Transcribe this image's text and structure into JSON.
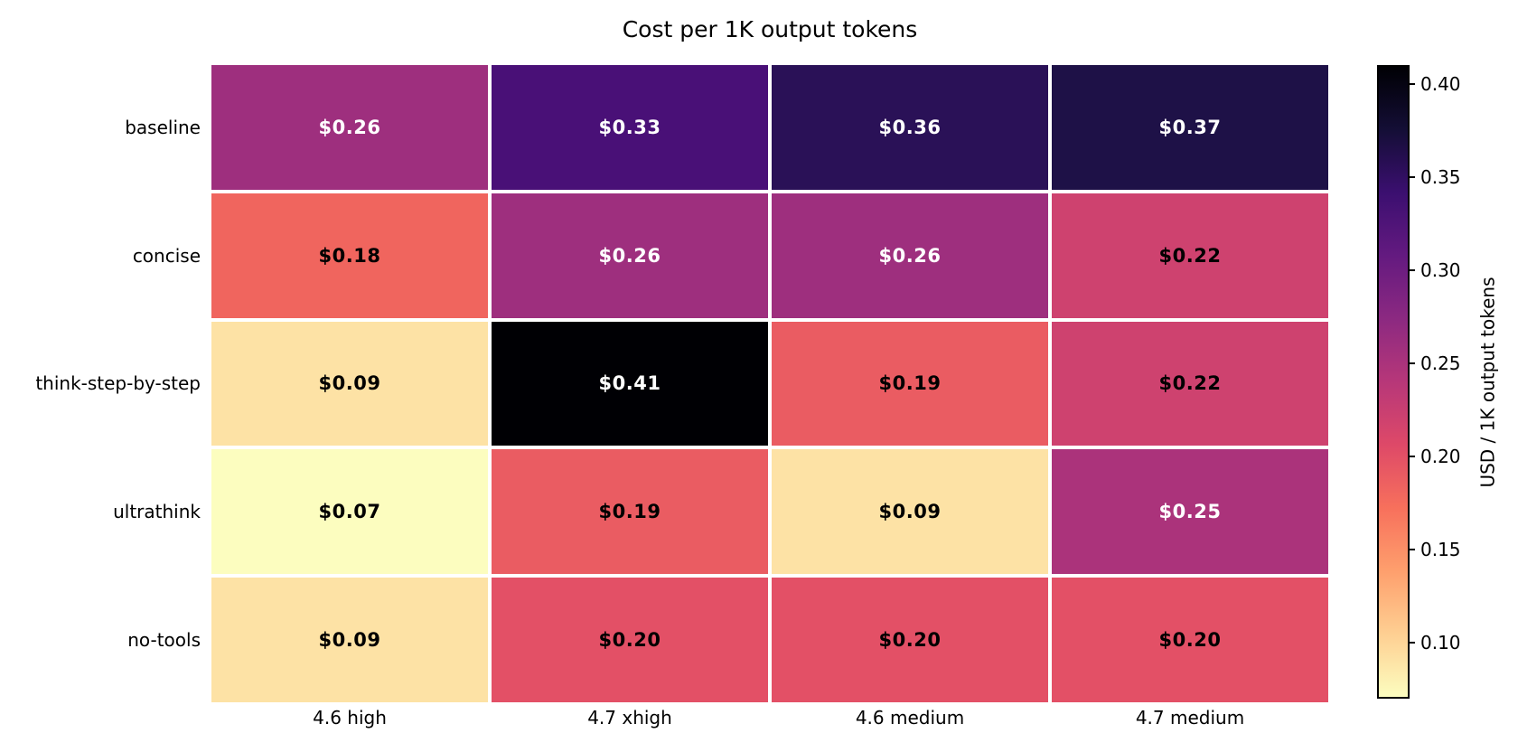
{
  "chart_data": {
    "type": "heatmap",
    "title": "Cost per 1K output tokens",
    "x_categories": [
      "4.6 high",
      "4.7 xhigh",
      "4.6 medium",
      "4.7 medium"
    ],
    "y_categories": [
      "baseline",
      "concise",
      "think-step-by-step",
      "ultrathink",
      "no-tools"
    ],
    "values": [
      [
        0.26,
        0.33,
        0.36,
        0.37
      ],
      [
        0.18,
        0.26,
        0.26,
        0.22
      ],
      [
        0.09,
        0.41,
        0.19,
        0.22
      ],
      [
        0.07,
        0.19,
        0.09,
        0.25
      ],
      [
        0.09,
        0.2,
        0.2,
        0.2
      ]
    ],
    "cell_labels": [
      [
        "$0.26",
        "$0.33",
        "$0.36",
        "$0.37"
      ],
      [
        "$0.18",
        "$0.26",
        "$0.26",
        "$0.22"
      ],
      [
        "$0.09",
        "$0.41",
        "$0.19",
        "$0.22"
      ],
      [
        "$0.07",
        "$0.19",
        "$0.09",
        "$0.25"
      ],
      [
        "$0.09",
        "$0.20",
        "$0.20",
        "$0.20"
      ]
    ],
    "cell_colors": [
      [
        "#9e2f7e",
        "#491077",
        "#2a1157",
        "#1e1147"
      ],
      [
        "#f0655e",
        "#9e2f7e",
        "#9e2f7e",
        "#ce426f"
      ],
      [
        "#fde2a5",
        "#000004",
        "#ea5c62",
        "#ce426f"
      ],
      [
        "#fcfdbf",
        "#ea5c62",
        "#fde2a5",
        "#ab337b"
      ],
      [
        "#fde2a5",
        "#e35066",
        "#e35066",
        "#e35066"
      ]
    ],
    "cell_text_colors": [
      [
        "#ffffff",
        "#ffffff",
        "#ffffff",
        "#ffffff"
      ],
      [
        "#000000",
        "#ffffff",
        "#ffffff",
        "#000000"
      ],
      [
        "#000000",
        "#ffffff",
        "#000000",
        "#000000"
      ],
      [
        "#000000",
        "#000000",
        "#000000",
        "#ffffff"
      ],
      [
        "#000000",
        "#000000",
        "#000000",
        "#000000"
      ]
    ],
    "colormap": "magma_r",
    "grid_line_color": "#ffffff",
    "legend_position": "right",
    "colorbar": {
      "label": "USD / 1K output tokens",
      "vmin": 0.07,
      "vmax": 0.41,
      "ticks": [
        0.4,
        0.35,
        0.3,
        0.25,
        0.2,
        0.15,
        0.1
      ],
      "tick_labels": [
        "0.40",
        "0.35",
        "0.30",
        "0.25",
        "0.20",
        "0.15",
        "0.10"
      ],
      "gradient_stops_top_to_bottom": [
        "#000004",
        "#140e36",
        "#3b0f70",
        "#641a80",
        "#8c2981",
        "#b73779",
        "#de4968",
        "#f7705c",
        "#fe9f6d",
        "#fecf92",
        "#fcfdbf"
      ]
    }
  }
}
